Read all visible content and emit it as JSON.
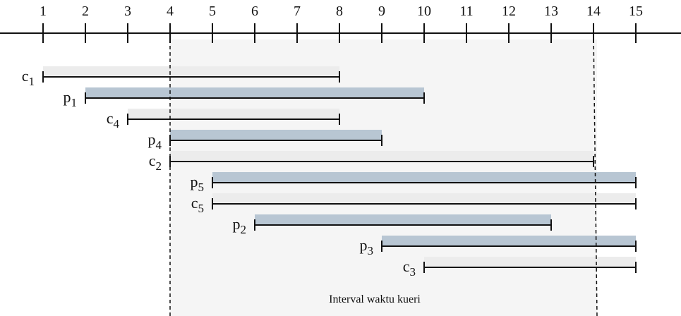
{
  "axis": {
    "ticks": [
      "1",
      "2",
      "3",
      "4",
      "5",
      "6",
      "7",
      "8",
      "9",
      "10",
      "11",
      "12",
      "13",
      "14",
      "15"
    ],
    "min": 1,
    "max": 15
  },
  "query_interval": {
    "label": "Interval waktu kueri",
    "start": 4,
    "end": 14
  },
  "intervals": [
    {
      "base": "c",
      "sub": "1",
      "kind": "c",
      "start": 1,
      "end": 8
    },
    {
      "base": "p",
      "sub": "1",
      "kind": "p",
      "start": 2,
      "end": 10
    },
    {
      "base": "c",
      "sub": "4",
      "kind": "c",
      "start": 3,
      "end": 8
    },
    {
      "base": "p",
      "sub": "4",
      "kind": "p",
      "start": 4,
      "end": 9
    },
    {
      "base": "c",
      "sub": "2",
      "kind": "c",
      "start": 4,
      "end": 14
    },
    {
      "base": "p",
      "sub": "5",
      "kind": "p",
      "start": 5,
      "end": 15
    },
    {
      "base": "c",
      "sub": "5",
      "kind": "c",
      "start": 5,
      "end": 15
    },
    {
      "base": "p",
      "sub": "2",
      "kind": "p",
      "start": 6,
      "end": 13
    },
    {
      "base": "p",
      "sub": "3",
      "kind": "p",
      "start": 9,
      "end": 15
    },
    {
      "base": "c",
      "sub": "3",
      "kind": "c",
      "start": 10,
      "end": 15
    }
  ],
  "colors": {
    "p_fill": "#b8c6d3",
    "c_fill": "#ececec",
    "query_fill": "#f5f5f5",
    "line": "#111111"
  }
}
